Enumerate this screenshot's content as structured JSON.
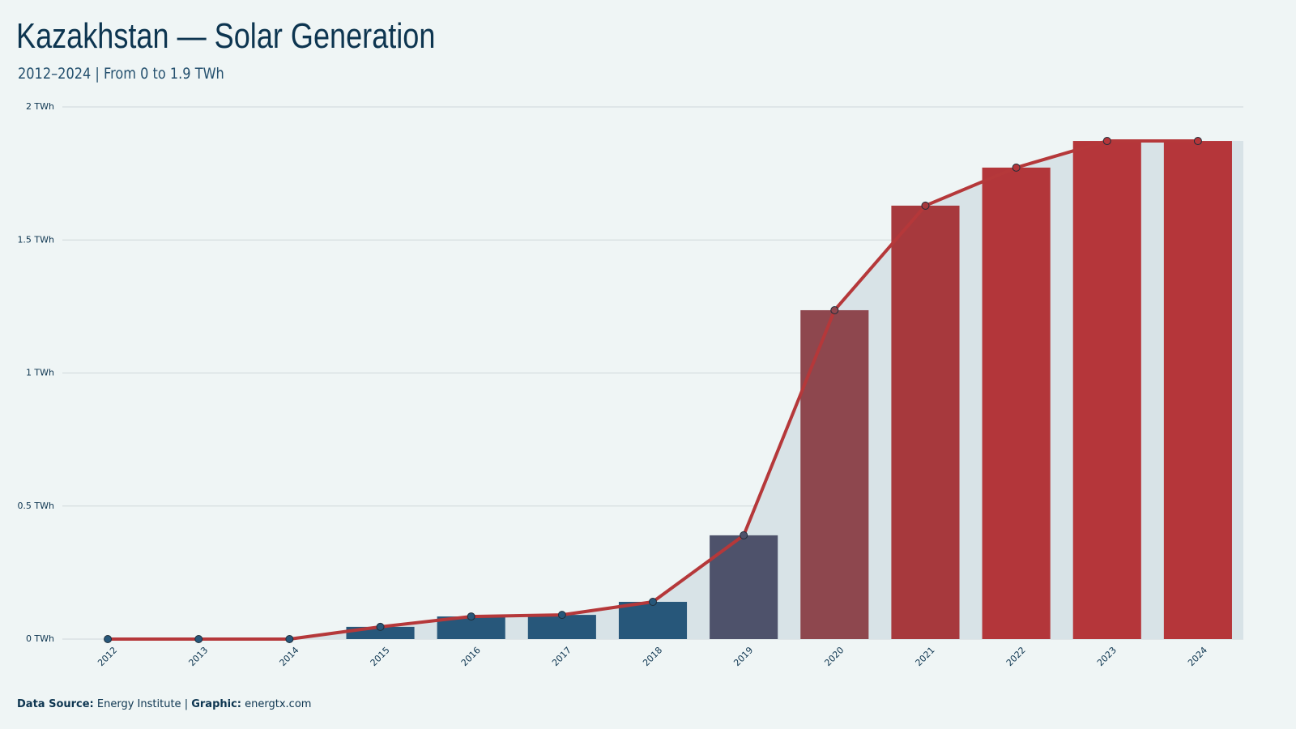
{
  "chart_data": {
    "type": "bar",
    "title": "Kazakhstan — Solar Generation",
    "subtitle": "2012–2024 | From 0 to 1.9 TWh",
    "categories": [
      "2012",
      "2013",
      "2014",
      "2015",
      "2016",
      "2017",
      "2018",
      "2019",
      "2020",
      "2021",
      "2022",
      "2023",
      "2024"
    ],
    "values": [
      0,
      0,
      0,
      0.046,
      0.085,
      0.091,
      0.14,
      0.39,
      1.236,
      1.629,
      1.772,
      1.872,
      1.872
    ],
    "bar_colors": [
      "#27577a",
      "#27577a",
      "#27577a",
      "#27577a",
      "#27577a",
      "#27577a",
      "#27577a",
      "#4e526b",
      "#8e474e",
      "#a7393d",
      "#b3363a",
      "#b5363a",
      "#b5363a"
    ],
    "line_color": "#b5383a",
    "area_color": "#d8e3e7",
    "ylim": [
      0,
      2
    ],
    "yticks": [
      {
        "value": 0,
        "label": "0 TWh"
      },
      {
        "value": 0.5,
        "label": "0.5 TWh"
      },
      {
        "value": 1,
        "label": "1 TWh"
      },
      {
        "value": 1.5,
        "label": "1.5 TWh"
      },
      {
        "value": 2,
        "label": "2 TWh"
      }
    ],
    "grid": true,
    "source_label": "Data Source:",
    "source": "Energy Institute",
    "separator": "|",
    "graphic_label": "Graphic:",
    "graphic": "energtx.com"
  }
}
